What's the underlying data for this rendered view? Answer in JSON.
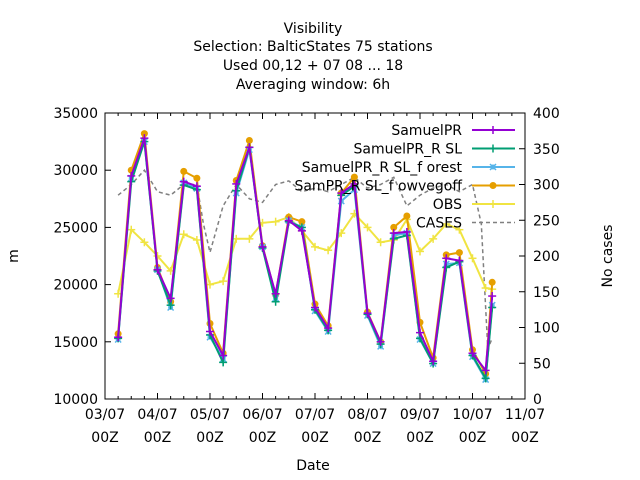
{
  "chart_data": {
    "type": "line",
    "title_lines": [
      "Visibility",
      "Selection: BalticStates      75 stations",
      "Used  00,12  + 07 08 ... 18",
      "Averaging window:  6h"
    ],
    "xlabel": "Date",
    "ylabel": "m",
    "y2label": "No cases",
    "x_unit": "hours since 03/07 00Z",
    "x_range": [
      0,
      192
    ],
    "ylim": [
      10000,
      35000
    ],
    "y2lim": [
      0,
      400
    ],
    "x_ticks": [
      {
        "x": 0,
        "line1": "03/07",
        "line2": "00Z"
      },
      {
        "x": 24,
        "line1": "04/07",
        "line2": "00Z"
      },
      {
        "x": 48,
        "line1": "05/07",
        "line2": "00Z"
      },
      {
        "x": 72,
        "line1": "06/07",
        "line2": "00Z"
      },
      {
        "x": 96,
        "line1": "07/07",
        "line2": "00Z"
      },
      {
        "x": 120,
        "line1": "08/07",
        "line2": "00Z"
      },
      {
        "x": 144,
        "line1": "09/07",
        "line2": "00Z"
      },
      {
        "x": 168,
        "line1": "10/07",
        "line2": "00Z"
      },
      {
        "x": 192,
        "line1": "11/07",
        "line2": "00Z"
      }
    ],
    "y_ticks": [
      {
        "v": 10000,
        "label": "10000"
      },
      {
        "v": 15000,
        "label": "15000"
      },
      {
        "v": 20000,
        "label": "20000"
      },
      {
        "v": 25000,
        "label": "25000"
      },
      {
        "v": 30000,
        "label": "30000"
      },
      {
        "v": 35000,
        "label": "35000"
      }
    ],
    "y2_ticks": [
      {
        "v": 0,
        "label": "0"
      },
      {
        "v": 50,
        "label": "50"
      },
      {
        "v": 100,
        "label": "100"
      },
      {
        "v": 150,
        "label": "150"
      },
      {
        "v": 200,
        "label": "200"
      },
      {
        "v": 250,
        "label": "250"
      },
      {
        "v": 300,
        "label": "300"
      },
      {
        "v": 350,
        "label": "350"
      },
      {
        "v": 400,
        "label": "400"
      }
    ],
    "x": [
      6,
      12,
      18,
      24,
      30,
      36,
      42,
      48,
      54,
      60,
      66,
      72,
      78,
      84,
      90,
      96,
      102,
      108,
      114,
      120,
      126,
      132,
      138,
      144,
      150,
      156,
      162,
      168,
      174,
      177
    ],
    "series": [
      {
        "name": "SamuelPR",
        "color": "#9400d3",
        "marker": "plus",
        "values": [
          15400,
          29500,
          32800,
          21300,
          18800,
          29000,
          28600,
          15900,
          13800,
          28800,
          32000,
          23300,
          19200,
          25600,
          24700,
          18000,
          16200,
          28000,
          28800,
          17500,
          15000,
          24500,
          24600,
          15800,
          13300,
          22300,
          22100,
          14000,
          12500,
          19000
        ]
      },
      {
        "name": "SamuelPR_R SL",
        "color": "#009e73",
        "marker": "plus",
        "values": [
          15300,
          29000,
          32500,
          21200,
          18200,
          28700,
          28300,
          15600,
          13200,
          28200,
          32000,
          23200,
          18500,
          25500,
          25000,
          17800,
          16000,
          27800,
          28600,
          17400,
          14800,
          24000,
          24300,
          15300,
          13100,
          21500,
          22000,
          13800,
          11800,
          18000
        ]
      },
      {
        "name": "SamuelPR_R SL_f orest",
        "color": "#56b4e9",
        "marker": "cross",
        "values": [
          15200,
          29300,
          32500,
          21300,
          18000,
          28900,
          28400,
          15400,
          13500,
          28000,
          31800,
          23300,
          18800,
          25600,
          25000,
          17700,
          15900,
          27300,
          28300,
          17300,
          14600,
          24300,
          24500,
          15200,
          13100,
          21800,
          21900,
          13700,
          11700,
          18200
        ]
      },
      {
        "name": "SamPR_R SL_f owvegoff",
        "color": "#e69f00",
        "marker": "circle",
        "values": [
          15700,
          30000,
          33200,
          21500,
          18500,
          29900,
          29300,
          16600,
          14000,
          29100,
          32600,
          23400,
          19100,
          25900,
          25500,
          18300,
          16400,
          28000,
          29400,
          17600,
          15000,
          25000,
          26000,
          16700,
          13600,
          22600,
          22800,
          14300,
          12200,
          20200
        ]
      },
      {
        "name": "OBS",
        "color": "#f0e442",
        "marker": "plus",
        "values": [
          19200,
          24800,
          23700,
          22500,
          21200,
          24400,
          23900,
          20000,
          20300,
          24000,
          24000,
          25400,
          25500,
          25900,
          24700,
          23300,
          23000,
          24500,
          26200,
          25000,
          23700,
          23900,
          25700,
          22900,
          24000,
          25300,
          24800,
          22300,
          19700,
          19600
        ]
      },
      {
        "name": "CASES",
        "color": "#808080",
        "marker": "none",
        "axis": "y2",
        "x": [
          6,
          12,
          18,
          24,
          30,
          36,
          42,
          45,
          48,
          54,
          60,
          66,
          72,
          78,
          84,
          90,
          96,
          102,
          108,
          114,
          120,
          126,
          132,
          138,
          144,
          150,
          156,
          162,
          168,
          172,
          175,
          177
        ],
        "values": [
          285,
          300,
          320,
          290,
          285,
          300,
          300,
          245,
          205,
          270,
          300,
          280,
          275,
          300,
          305,
          290,
          295,
          290,
          300,
          310,
          295,
          300,
          310,
          270,
          285,
          295,
          300,
          290,
          300,
          245,
          70,
          85
        ]
      }
    ],
    "legend_position": "top-right",
    "grid": false
  }
}
